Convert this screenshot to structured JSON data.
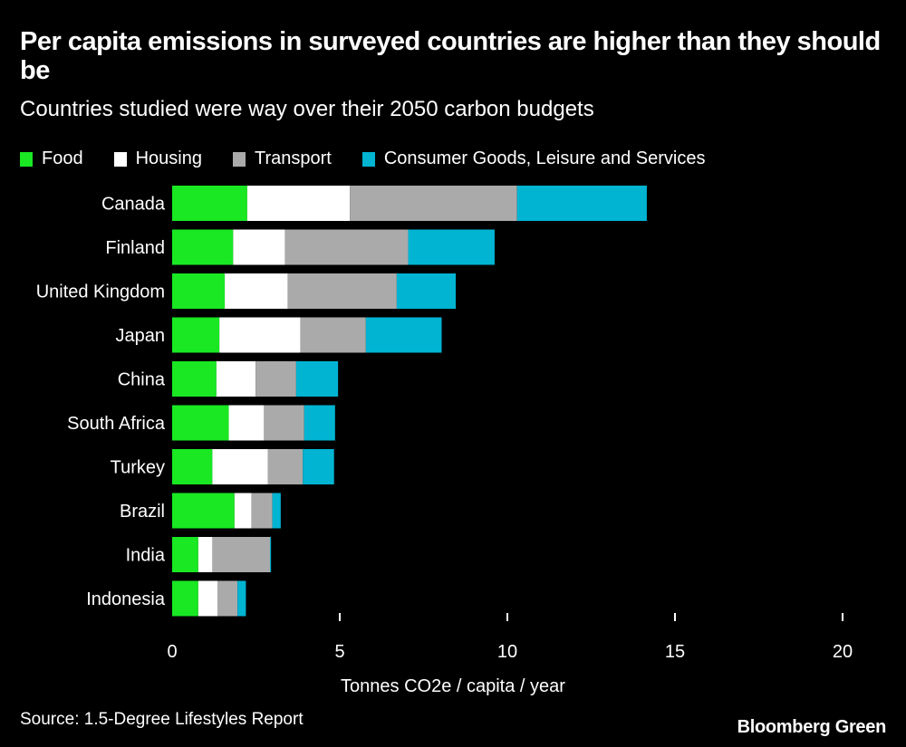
{
  "chart_data": {
    "type": "bar",
    "orientation": "horizontal",
    "stacked": true,
    "title": "Per capita emissions in surveyed countries are higher than they should be",
    "subtitle": "Countries studied were way over their 2050 carbon budgets",
    "xlabel": "Tonnes CO2e / capita / year",
    "ylabel": "",
    "xlim": [
      0,
      20
    ],
    "xticks": [
      0,
      5,
      10,
      15,
      20
    ],
    "grid": false,
    "legend_position": "top-left",
    "categories": [
      "Canada",
      "Finland",
      "United Kingdom",
      "Japan",
      "China",
      "South Africa",
      "Turkey",
      "Brazil",
      "India",
      "Indonesia"
    ],
    "series": [
      {
        "name": "Food",
        "color": "#19e823",
        "values": [
          2.24,
          1.82,
          1.57,
          1.41,
          1.32,
          1.69,
          1.2,
          1.86,
          0.78,
          0.78
        ]
      },
      {
        "name": "Housing",
        "color": "#ffffff",
        "values": [
          3.06,
          1.55,
          1.88,
          2.42,
          1.17,
          1.05,
          1.66,
          0.51,
          0.42,
          0.58
        ]
      },
      {
        "name": "Transport",
        "color": "#aaaaaa",
        "values": [
          4.99,
          3.67,
          3.25,
          1.95,
          1.21,
          1.2,
          1.04,
          0.62,
          1.72,
          0.59
        ]
      },
      {
        "name": "Consumer Goods, Leisure and Services",
        "color": "#00b4d2",
        "values": [
          3.87,
          2.58,
          1.76,
          2.26,
          1.25,
          0.92,
          0.93,
          0.25,
          0.03,
          0.25
        ]
      }
    ],
    "source": "Source: 1.5-Degree Lifestyles Report",
    "brand": "Bloomberg Green"
  }
}
